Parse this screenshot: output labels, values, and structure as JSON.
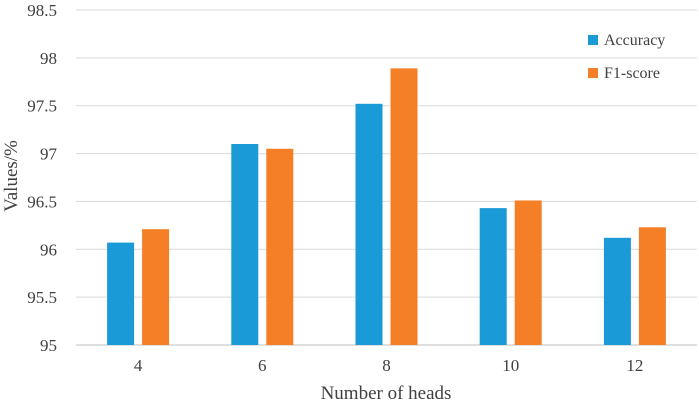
{
  "chart_data": {
    "type": "bar",
    "categories": [
      "4",
      "6",
      "8",
      "10",
      "12"
    ],
    "series": [
      {
        "name": "Accuracy",
        "color": "#1a9ad7",
        "values": [
          96.07,
          97.1,
          97.52,
          96.43,
          96.12
        ]
      },
      {
        "name": "F1-score",
        "color": "#f47f26",
        "values": [
          96.21,
          97.05,
          97.89,
          96.51,
          96.23
        ]
      }
    ],
    "title": "",
    "xlabel": "Number of heads",
    "ylabel": "Values/%",
    "ylim": [
      95,
      98.5
    ],
    "yticks": [
      "95",
      "95.5",
      "96",
      "96.5",
      "97",
      "97.5",
      "98",
      "98.5"
    ],
    "grid": true,
    "legend_position": "top-right"
  }
}
